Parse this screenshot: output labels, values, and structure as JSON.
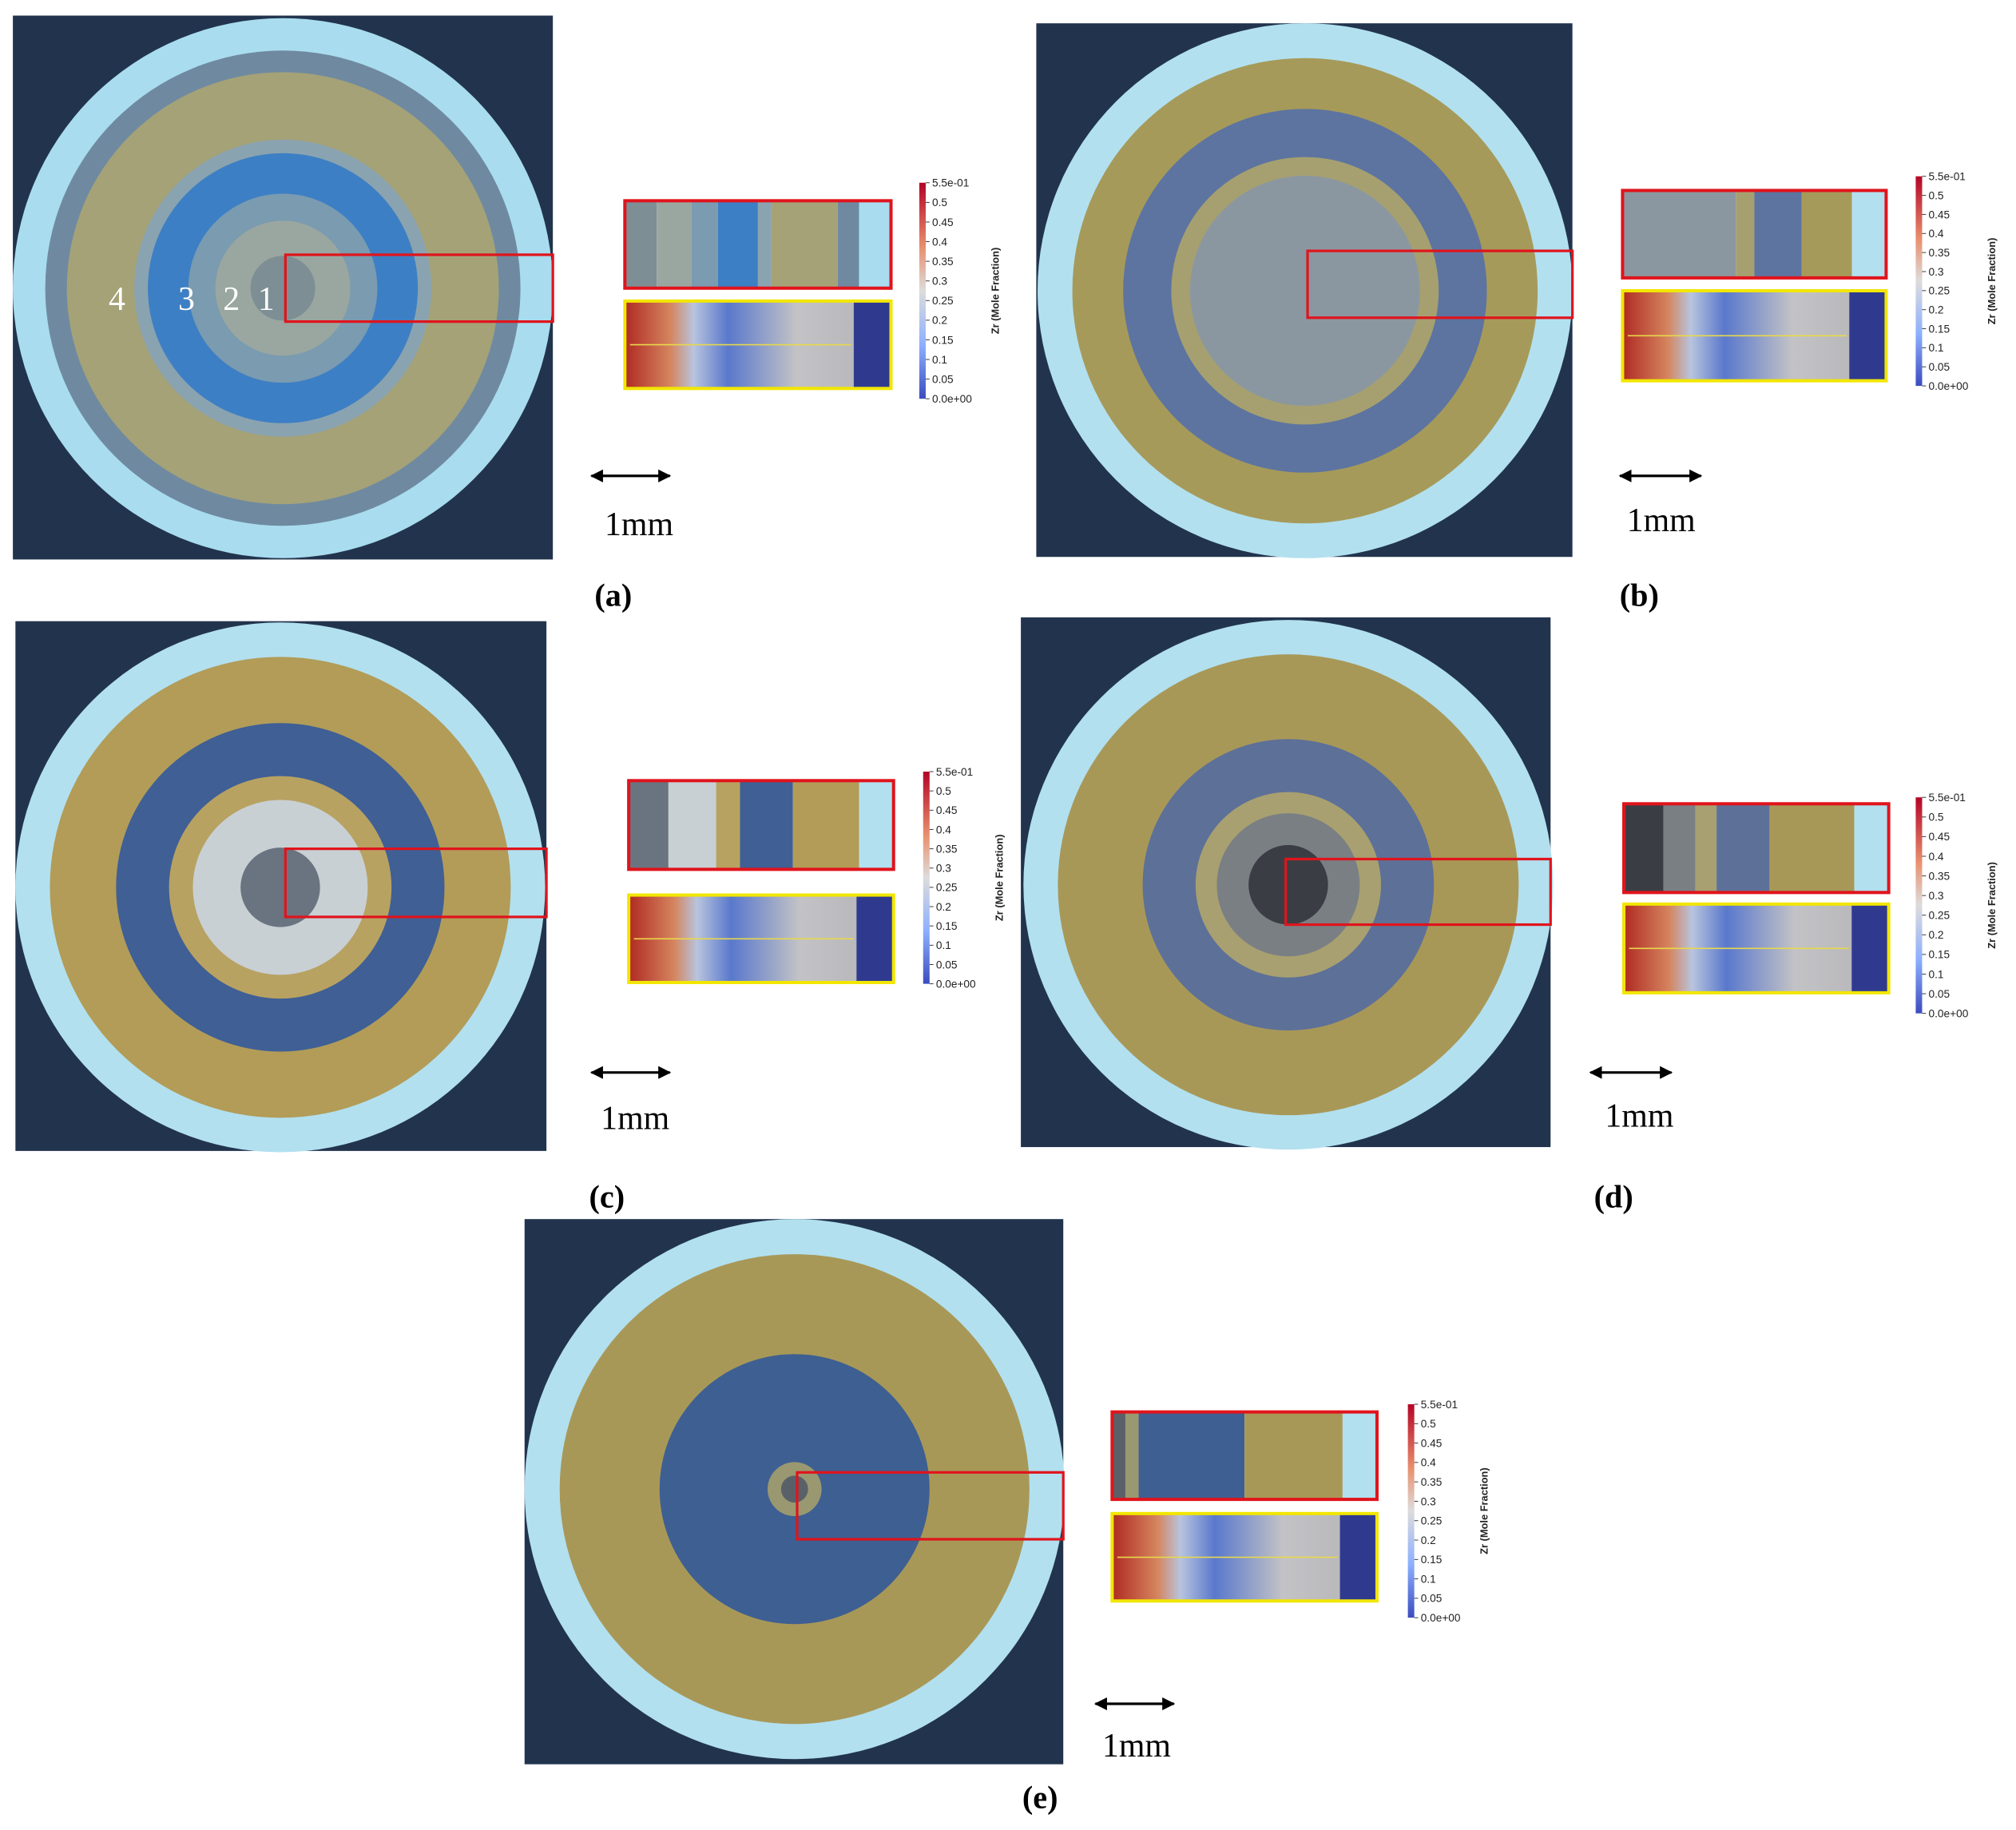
{
  "panels": [
    {
      "caption": "(a)",
      "scale": "1mm",
      "colorbar_title": "Zr (Mole Fraction)",
      "colorbar_ticks": [
        "5.5e-01",
        "0.5",
        "0.45",
        "0.4",
        "0.35",
        "0.3",
        "0.25",
        "0.2",
        "0.15",
        "0.1",
        "0.05",
        "0.0e+00"
      ],
      "zone_labels": [
        "4",
        "3",
        "2",
        "1"
      ]
    },
    {
      "caption": "(b)",
      "scale": "1mm",
      "colorbar_title": "Zr (Mole Fraction)",
      "colorbar_ticks": [
        "5.5e-01",
        "0.5",
        "0.45",
        "0.4",
        "0.35",
        "0.3",
        "0.25",
        "0.2",
        "0.15",
        "0.1",
        "0.05",
        "0.0e+00"
      ]
    },
    {
      "caption": "(c)",
      "scale": "1mm",
      "colorbar_title": "Zr (Mole Fraction)",
      "colorbar_ticks": [
        "5.5e-01",
        "0.5",
        "0.45",
        "0.4",
        "0.35",
        "0.3",
        "0.25",
        "0.2",
        "0.15",
        "0.1",
        "0.05",
        "0.0e+00"
      ]
    },
    {
      "caption": "(d)",
      "scale": "1mm",
      "colorbar_title": "Zr (Mole Fraction)",
      "colorbar_ticks": [
        "5.5e-01",
        "0.5",
        "0.45",
        "0.4",
        "0.35",
        "0.3",
        "0.25",
        "0.2",
        "0.15",
        "0.1",
        "0.05",
        "0.0e+00"
      ]
    },
    {
      "caption": "(e)",
      "scale": "1mm",
      "colorbar_title": "Zr (Mole Fraction)",
      "colorbar_ticks": [
        "5.5e-01",
        "0.5",
        "0.45",
        "0.4",
        "0.35",
        "0.3",
        "0.25",
        "0.2",
        "0.15",
        "0.1",
        "0.05",
        "0.0e+00"
      ]
    }
  ]
}
